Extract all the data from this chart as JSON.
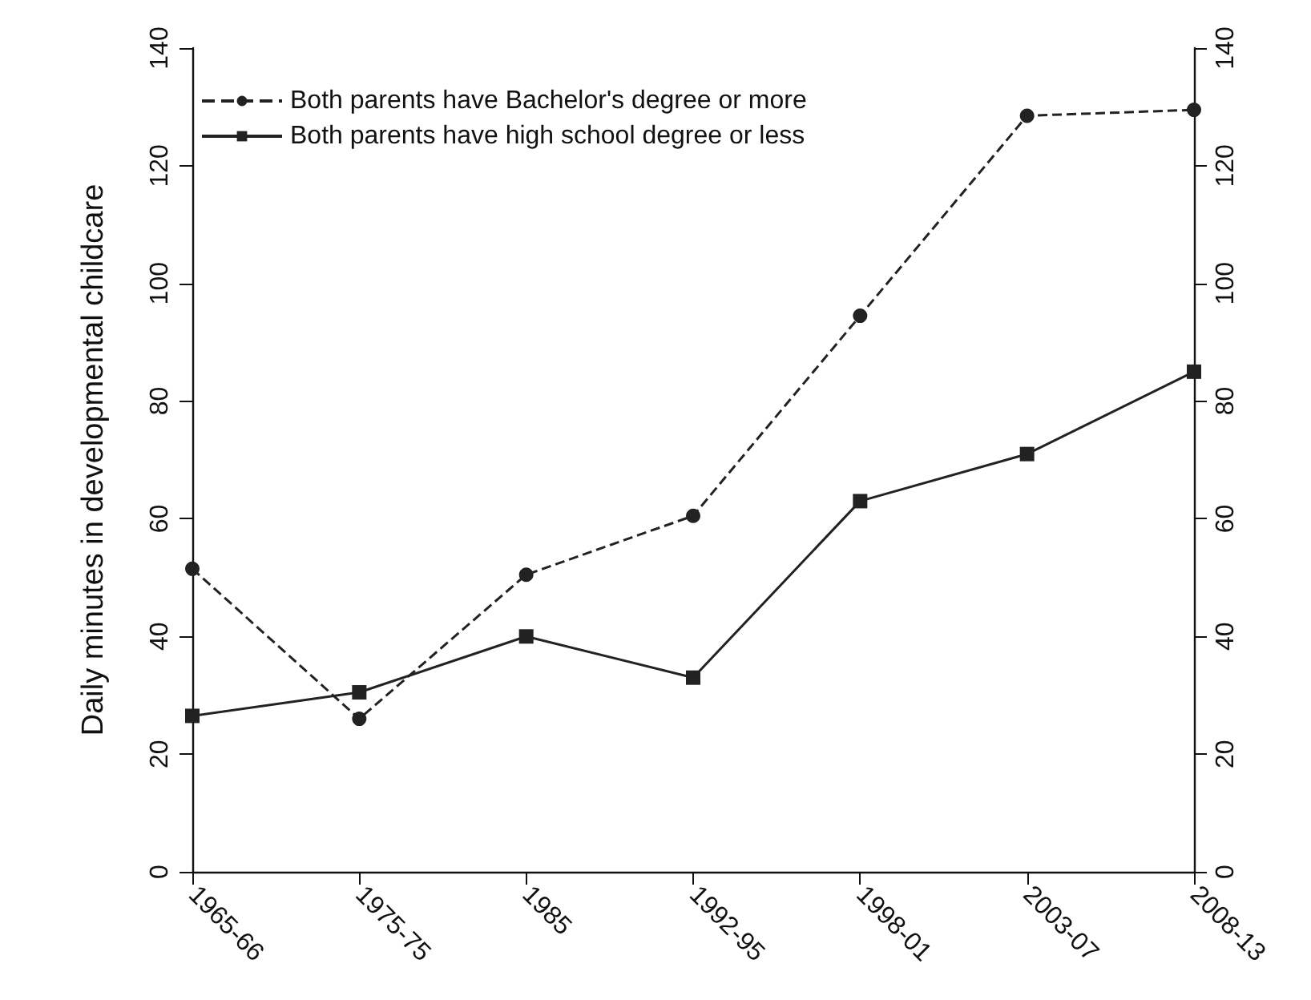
{
  "chart_data": {
    "type": "line",
    "ylabel": "Daily minutes in developmental childcare",
    "categories": [
      "1965-66",
      "1975-75",
      "1985",
      "1992-95",
      "1998-01",
      "2003-07",
      "2008-13"
    ],
    "ylim": [
      0,
      140
    ],
    "yticks": [
      0,
      20,
      40,
      60,
      80,
      100,
      120,
      140
    ],
    "y2lim": [
      0,
      140
    ],
    "y2ticks": [
      0,
      20,
      40,
      60,
      80,
      100,
      120,
      140
    ],
    "series": [
      {
        "name": "Both parents have Bachelor's degree or more",
        "color": "#222222",
        "marker": "circle",
        "line_style": "dashed",
        "values": [
          51.5,
          26,
          50.5,
          60.5,
          94.5,
          128.5,
          129.5
        ]
      },
      {
        "name": "Both parents have high school degree or less",
        "color": "#222222",
        "marker": "square",
        "line_style": "solid",
        "values": [
          26.5,
          30.5,
          40,
          33,
          63,
          71,
          85
        ]
      }
    ],
    "legend": "top left",
    "grid": false
  }
}
